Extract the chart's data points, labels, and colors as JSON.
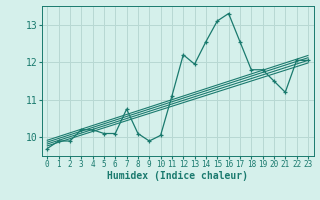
{
  "xlabel": "Humidex (Indice chaleur)",
  "ylabel": "",
  "bg_color": "#d5f0eb",
  "line_color": "#1a7a6e",
  "grid_color": "#b8d8d3",
  "x_data": [
    0,
    1,
    2,
    3,
    4,
    5,
    6,
    7,
    8,
    9,
    10,
    11,
    12,
    13,
    14,
    15,
    16,
    17,
    18,
    19,
    20,
    21,
    22,
    23
  ],
  "y_main": [
    9.7,
    9.9,
    9.9,
    10.2,
    10.2,
    10.1,
    10.1,
    10.75,
    10.1,
    9.9,
    10.05,
    11.1,
    12.2,
    11.95,
    12.55,
    13.1,
    13.3,
    12.55,
    11.8,
    11.8,
    11.5,
    11.2,
    12.05,
    12.05
  ],
  "trend_lines": [
    {
      "x0": 0,
      "y0": 9.82,
      "x1": 23,
      "y1": 12.05
    },
    {
      "x0": 0,
      "y0": 9.87,
      "x1": 23,
      "y1": 12.12
    },
    {
      "x0": 0,
      "y0": 9.77,
      "x1": 23,
      "y1": 11.98
    },
    {
      "x0": 0,
      "y0": 9.92,
      "x1": 23,
      "y1": 12.18
    }
  ],
  "ylim": [
    9.5,
    13.5
  ],
  "xlim": [
    -0.5,
    23.5
  ],
  "yticks": [
    10,
    11,
    12,
    13
  ],
  "xticks": [
    0,
    1,
    2,
    3,
    4,
    5,
    6,
    7,
    8,
    9,
    10,
    11,
    12,
    13,
    14,
    15,
    16,
    17,
    18,
    19,
    20,
    21,
    22,
    23
  ]
}
